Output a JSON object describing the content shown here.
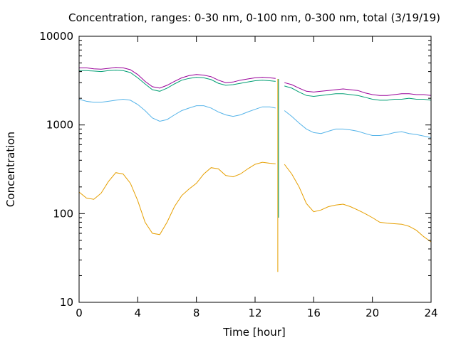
{
  "chart_data": {
    "type": "line",
    "title": "Concentration, ranges: 0-30 nm, 0-100 nm, 0-300 nm, total (3/19/19)",
    "xlabel": "Time [hour]",
    "ylabel": "Concentration",
    "xlim": [
      0,
      24
    ],
    "ylim": [
      10,
      10000
    ],
    "yscale": "log",
    "grid": false,
    "legend": "none",
    "x_ticks": [
      "0",
      "4",
      "8",
      "12",
      "16",
      "20",
      "24"
    ],
    "y_ticks": [
      "10",
      "100",
      "1000",
      "10000"
    ],
    "series": [
      {
        "color": "#990099",
        "x": [
          0,
          0.5,
          1,
          1.5,
          2,
          2.5,
          3,
          3.5,
          4,
          4.5,
          5,
          5.5,
          6,
          6.5,
          7,
          7.5,
          8,
          8.5,
          9,
          9.5,
          10,
          10.5,
          11,
          11.5,
          12,
          12.5,
          13,
          13.4,
          14,
          14.5,
          15,
          15.5,
          16,
          16.5,
          17,
          17.5,
          18,
          18.5,
          19,
          19.5,
          20,
          20.5,
          21,
          21.5,
          22,
          22.5,
          23,
          23.5,
          24
        ],
        "y": [
          4400,
          4400,
          4300,
          4250,
          4350,
          4450,
          4400,
          4200,
          3700,
          3100,
          2700,
          2600,
          2800,
          3100,
          3400,
          3600,
          3700,
          3650,
          3500,
          3200,
          3000,
          3050,
          3200,
          3300,
          3400,
          3450,
          3400,
          3350,
          3000,
          2850,
          2600,
          2400,
          2350,
          2400,
          2450,
          2500,
          2550,
          2500,
          2450,
          2300,
          2200,
          2150,
          2150,
          2200,
          2250,
          2250,
          2200,
          2200,
          2150
        ]
      },
      {
        "color": "#009e73",
        "x": [
          0,
          0.5,
          1,
          1.5,
          2,
          2.5,
          3,
          3.5,
          4,
          4.5,
          5,
          5.5,
          6,
          6.5,
          7,
          7.5,
          8,
          8.5,
          9,
          9.5,
          10,
          10.5,
          11,
          11.5,
          12,
          12.5,
          13,
          13.4,
          14,
          14.5,
          15,
          15.5,
          16,
          16.5,
          17,
          17.5,
          18,
          18.5,
          19,
          19.5,
          20,
          20.5,
          21,
          21.5,
          22,
          22.5,
          23,
          23.5,
          24
        ],
        "y": [
          4100,
          4100,
          4050,
          4000,
          4100,
          4150,
          4100,
          3900,
          3400,
          2900,
          2500,
          2400,
          2600,
          2900,
          3200,
          3350,
          3450,
          3400,
          3250,
          2950,
          2800,
          2850,
          2950,
          3050,
          3150,
          3200,
          3150,
          3100,
          2750,
          2600,
          2350,
          2150,
          2100,
          2150,
          2200,
          2250,
          2250,
          2200,
          2150,
          2050,
          1950,
          1900,
          1900,
          1950,
          1950,
          2000,
          1950,
          1950,
          1900
        ]
      },
      {
        "color": "#56b4e9",
        "x": [
          0,
          0.5,
          1,
          1.5,
          2,
          2.5,
          3,
          3.5,
          4,
          4.5,
          5,
          5.5,
          6,
          6.5,
          7,
          7.5,
          8,
          8.5,
          9,
          9.5,
          10,
          10.5,
          11,
          11.5,
          12,
          12.5,
          13,
          13.4,
          14,
          14.5,
          15,
          15.5,
          16,
          16.5,
          17,
          17.5,
          18,
          18.5,
          19,
          19.5,
          20,
          20.5,
          21,
          21.5,
          22,
          22.5,
          23,
          23.5,
          24
        ],
        "y": [
          1950,
          1850,
          1800,
          1800,
          1850,
          1900,
          1950,
          1900,
          1700,
          1450,
          1200,
          1100,
          1150,
          1300,
          1450,
          1550,
          1650,
          1650,
          1550,
          1400,
          1300,
          1250,
          1300,
          1400,
          1500,
          1600,
          1600,
          1550,
          1450,
          1250,
          1050,
          900,
          820,
          800,
          850,
          900,
          900,
          880,
          850,
          800,
          760,
          760,
          780,
          820,
          840,
          800,
          780,
          750,
          720
        ]
      },
      {
        "color": "#e69f00",
        "x": [
          0,
          0.5,
          1,
          1.5,
          2,
          2.5,
          3,
          3.5,
          4,
          4.5,
          5,
          5.5,
          6,
          6.5,
          7,
          7.5,
          8,
          8.5,
          9,
          9.5,
          10,
          10.5,
          11,
          11.5,
          12,
          12.5,
          13,
          13.4,
          14,
          14.5,
          15,
          15.5,
          16,
          16.5,
          17,
          17.5,
          18,
          18.5,
          19,
          19.5,
          20,
          20.5,
          21,
          21.5,
          22,
          22.5,
          23,
          23.5,
          24
        ],
        "y": [
          175,
          150,
          145,
          170,
          230,
          290,
          280,
          220,
          140,
          80,
          60,
          58,
          80,
          120,
          160,
          190,
          220,
          280,
          330,
          320,
          270,
          260,
          280,
          320,
          360,
          380,
          370,
          365,
          360,
          280,
          200,
          130,
          105,
          110,
          120,
          125,
          128,
          120,
          110,
          100,
          90,
          80,
          78,
          77,
          76,
          72,
          65,
          55,
          48
        ]
      }
    ],
    "spike": {
      "x": 13.55,
      "y_min": 22,
      "y_max": 3300
    }
  }
}
